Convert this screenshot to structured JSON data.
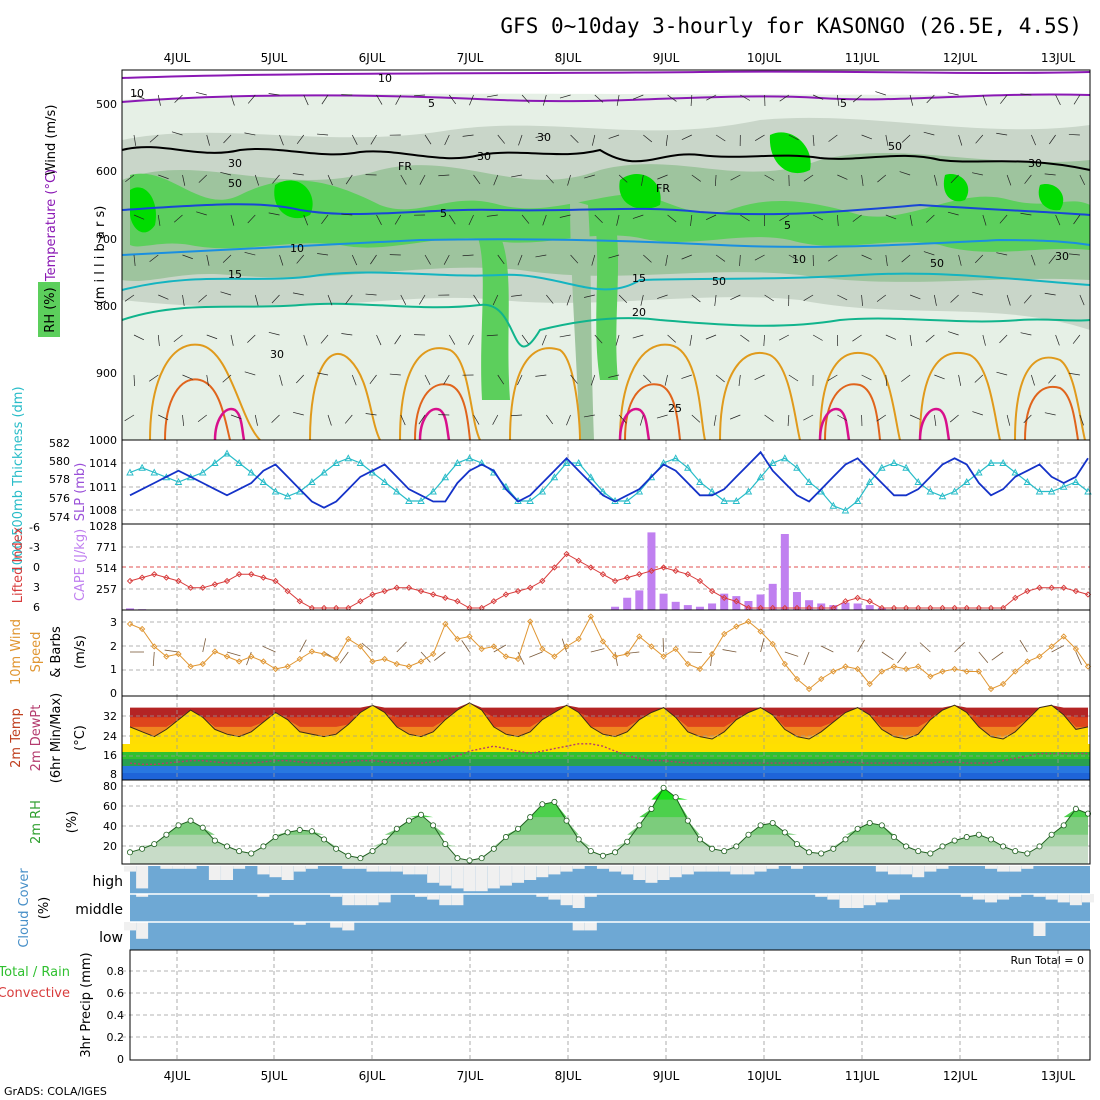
{
  "header": {
    "title": "GFS 0~10day 3-hourly for KASONGO (26.5E, 4.5S)"
  },
  "footer": {
    "credit": "GrADS: COLA/IGES",
    "run_total": "Run Total = 0"
  },
  "date_labels": [
    "4JUL",
    "5JUL",
    "6JUL",
    "7JUL",
    "8JUL",
    "9JUL",
    "10JUL",
    "11JUL",
    "12JUL",
    "13JUL"
  ],
  "colors": {
    "rh_dark": "#00dc00",
    "rh_mid": "#5ccf5c",
    "rh_light": "#9ec49e",
    "rh_pale": "#c9d6c9",
    "rh_faint": "#e6f0e6",
    "temp_5_upper": "#8a18b4",
    "temp_5": "#1846d6",
    "temp_10": "#1a8fe0",
    "temp_15": "#14b4c0",
    "temp_20": "#10b48c",
    "temp_25": "#e09a1c",
    "temp_30": "#e0641c",
    "temp_35": "#d8108c",
    "slp": "#1432c8",
    "thickness": "#28bcc8",
    "lifted_index": "#d83c3c",
    "cape": "#c080f0",
    "wind10m": "#e09632",
    "dewpt": "#b43c6e",
    "rh2m": "#30c030",
    "cloud": "#6ea8d4",
    "cloud_clear": "#f0f0f0"
  },
  "panels": {
    "upper": {
      "ylabel_wind": "Wind (m/s)",
      "ylabel_temp": "Temperature (°C)",
      "ylabel_rh": "RH (%)",
      "ylabel_units": "(m i l l i b a r s)",
      "ticks": [
        "500",
        "600",
        "700",
        "800",
        "900",
        "1000"
      ],
      "contour_labels": [
        "5",
        "5",
        "5",
        "5",
        "10",
        "10",
        "15",
        "15",
        "20",
        "25",
        "FR",
        "FR",
        "10",
        "10",
        "30",
        "30",
        "30",
        "30",
        "50",
        "50",
        "50",
        "50",
        "30",
        "30"
      ]
    },
    "slp": {
      "ylabel_left": "1000-500mb Thickness (dm)",
      "ylabel_right": "SLP (mb)",
      "ticks_left": [
        "582",
        "580",
        "578",
        "576",
        "574"
      ],
      "ticks_right": [
        "1014",
        "1011",
        "1008"
      ]
    },
    "li": {
      "ylabel_left": "Lifted Index",
      "ylabel_right": "CAPE (J/kg)",
      "ticks_left": [
        "-6",
        "-3",
        "0",
        "3",
        "6"
      ],
      "ticks_right": [
        "1028",
        "771",
        "514",
        "257"
      ]
    },
    "wind10": {
      "ylabel_a": "10m Wind",
      "ylabel_b": "Speed",
      "ylabel_c": "& Barbs",
      "ylabel_units": "(m/s)",
      "ticks": [
        "3",
        "2",
        "1",
        "0"
      ]
    },
    "temp2m": {
      "ylabel_a": "2m Temp",
      "ylabel_b": "2m DewPt",
      "ylabel_c": "(6hr Min/Max)",
      "ylabel_units": "(°C)",
      "ticks": [
        "32",
        "24",
        "16",
        "8"
      ]
    },
    "rh2m": {
      "ylabel": "2m RH",
      "ylabel_units": "(%)",
      "ticks": [
        "80",
        "60",
        "40",
        "20"
      ]
    },
    "cloud": {
      "ylabel": "Cloud Cover",
      "ylabel_units": "(%)",
      "layers": [
        "high",
        "middle",
        "low"
      ]
    },
    "precip": {
      "ylabel_a": "Total / Rain",
      "ylabel_b": "Convective",
      "ylabel_c": "3hr Precip (mm)",
      "ticks": [
        "0.8",
        "0.6",
        "0.4",
        "0.2",
        "0"
      ]
    }
  },
  "chart_data": {
    "type": "line",
    "title": "GFS 0~10day 3-hourly for KASONGO (26.5E, 4.5S)",
    "x_start": "3JUL 12Z",
    "x_step_hours": 3,
    "x_count": 80,
    "x_tick_labels": [
      "4JUL",
      "5JUL",
      "6JUL",
      "7JUL",
      "8JUL",
      "9JUL",
      "10JUL",
      "11JUL",
      "12JUL",
      "13JUL"
    ],
    "series": [
      {
        "name": "SLP (mb)",
        "ylim": [
          1005,
          1017
        ],
        "values": [
          1009,
          1010,
          1011,
          1012,
          1013,
          1012,
          1011,
          1010,
          1009,
          1010,
          1011,
          1013,
          1014,
          1012,
          1010,
          1008,
          1007,
          1008,
          1010,
          1012,
          1013,
          1014,
          1012,
          1010,
          1009,
          1008,
          1008,
          1011,
          1013,
          1014,
          1013,
          1010,
          1008,
          1009,
          1011,
          1013,
          1015,
          1013,
          1011,
          1009,
          1008,
          1009,
          1010,
          1012,
          1014,
          1013,
          1011,
          1009,
          1009,
          1010,
          1012,
          1014,
          1016,
          1013,
          1011,
          1009,
          1008,
          1010,
          1012,
          1014,
          1015,
          1013,
          1011,
          1009,
          1009,
          1010,
          1012,
          1014,
          1015,
          1014,
          1011,
          1009,
          1010,
          1012,
          1013,
          1014,
          1012,
          1011,
          1012,
          1015
        ]
      },
      {
        "name": "1000-500mb Thickness (dm)",
        "ylim": [
          574,
          582
        ],
        "values": [
          579,
          579.5,
          579,
          578.5,
          578,
          578.5,
          579,
          580,
          581,
          580,
          579,
          578,
          577,
          576.5,
          577,
          578,
          579,
          580,
          580.5,
          580,
          579,
          578,
          577,
          576,
          576,
          577,
          578.5,
          580,
          580.5,
          580,
          579,
          577.5,
          576,
          576,
          577,
          578.5,
          580,
          580,
          578.5,
          577,
          576,
          576,
          577,
          578.5,
          580,
          580.5,
          579.5,
          578,
          577,
          576,
          576,
          577,
          578.5,
          580,
          580.5,
          579.5,
          578,
          577,
          575.5,
          575,
          576,
          578,
          579.5,
          580,
          579.5,
          578,
          577,
          576.5,
          577,
          578,
          579,
          580,
          580,
          579,
          578,
          577,
          577,
          577.5,
          578,
          577
        ]
      },
      {
        "name": "Lifted Index",
        "ylim": [
          6,
          -6
        ],
        "values": [
          2,
          1.5,
          1,
          1.5,
          2,
          3,
          3,
          2.5,
          2,
          1,
          1,
          1.5,
          2,
          3.5,
          5,
          6,
          6,
          6,
          6,
          5,
          4,
          3.5,
          3,
          3,
          3.5,
          4,
          4.5,
          5,
          6,
          6,
          5,
          4,
          3.5,
          3,
          2,
          0,
          -2,
          -1,
          0,
          1,
          2,
          1.5,
          1,
          0.5,
          0,
          0.5,
          1,
          2,
          3.5,
          4.5,
          5,
          6,
          6,
          6,
          6,
          6,
          6,
          6,
          6,
          5,
          4.5,
          5,
          6,
          6,
          6,
          6,
          6,
          6,
          6,
          6,
          6,
          6,
          6,
          4.5,
          3.5,
          3,
          3,
          3,
          3.5,
          4
        ]
      },
      {
        "name": "CAPE (J/kg)",
        "ylim": [
          0,
          1028
        ],
        "values": [
          20,
          10,
          0,
          0,
          0,
          0,
          0,
          0,
          0,
          0,
          0,
          0,
          0,
          0,
          0,
          0,
          0,
          0,
          0,
          0,
          0,
          0,
          0,
          0,
          0,
          0,
          0,
          0,
          0,
          0,
          0,
          0,
          0,
          0,
          0,
          0,
          0,
          0,
          0,
          0,
          40,
          150,
          240,
          950,
          200,
          100,
          60,
          40,
          80,
          200,
          170,
          110,
          190,
          320,
          930,
          220,
          120,
          80,
          60,
          90,
          80,
          60,
          30,
          0,
          0,
          0,
          0,
          0,
          0,
          0,
          0,
          0,
          0,
          0,
          0,
          0,
          0,
          0,
          0,
          0
        ]
      },
      {
        "name": "10m Wind Speed (m/s)",
        "ylim": [
          0,
          3.2
        ],
        "values": [
          2.8,
          2.6,
          1.9,
          1.5,
          1.6,
          1.1,
          1.2,
          1.7,
          1.5,
          1.3,
          1.5,
          1.3,
          1.0,
          1.1,
          1.4,
          1.7,
          1.6,
          1.4,
          2.2,
          1.9,
          1.3,
          1.4,
          1.2,
          1.1,
          1.3,
          1.6,
          2.8,
          2.2,
          2.3,
          1.8,
          1.9,
          1.5,
          1.4,
          2.9,
          1.8,
          1.5,
          1.9,
          2.2,
          3.1,
          2.1,
          1.5,
          1.6,
          2.3,
          1.9,
          1.5,
          1.8,
          1.2,
          1.0,
          1.6,
          2.4,
          2.7,
          2.9,
          2.5,
          2.0,
          1.2,
          0.6,
          0.2,
          0.6,
          0.9,
          1.1,
          1.0,
          0.4,
          0.9,
          1.1,
          1.0,
          1.1,
          0.7,
          0.9,
          1.0,
          0.9,
          0.9,
          0.2,
          0.4,
          0.9,
          1.3,
          1.5,
          1.9,
          2.3,
          1.8,
          1.1
        ]
      },
      {
        "name": "2m Temp (°C)",
        "ylim": [
          4,
          38
        ],
        "values": [
          26,
          24,
          22,
          25,
          29,
          33,
          30,
          25,
          23,
          22,
          24,
          28,
          32,
          29,
          24,
          23,
          22,
          23,
          27,
          32,
          35,
          32,
          26,
          23,
          22,
          24,
          29,
          33,
          36,
          33,
          26,
          23,
          22,
          24,
          29,
          32,
          35,
          32,
          26,
          23,
          22,
          24,
          29,
          32,
          34,
          30,
          24,
          22,
          21,
          24,
          29,
          32,
          34,
          31,
          25,
          22,
          21,
          24,
          28,
          32,
          34,
          31,
          25,
          22,
          21,
          23,
          29,
          33,
          35,
          32,
          26,
          22,
          21,
          24,
          29,
          34,
          35,
          31,
          25,
          26
        ]
      },
      {
        "name": "2m DewPt (°C)",
        "ylim": [
          4,
          38
        ],
        "values": [
          11,
          10.5,
          10.5,
          11,
          11.5,
          12,
          12,
          11.5,
          11,
          11,
          11,
          11.5,
          12,
          12,
          11.5,
          11,
          11,
          11,
          11.5,
          12,
          12,
          11.5,
          11,
          11,
          11,
          11.5,
          12.5,
          14,
          16,
          17,
          18,
          17,
          16,
          15,
          16,
          17,
          18,
          19,
          19,
          18,
          16,
          14,
          13,
          12,
          12,
          11.5,
          11,
          11,
          11,
          11,
          11,
          11,
          11,
          11,
          11,
          11,
          11,
          11,
          11.5,
          11.5,
          11,
          11,
          11,
          11,
          11,
          11,
          11,
          11.5,
          11.5,
          11,
          11,
          11,
          12,
          13,
          14,
          15,
          15,
          15,
          15,
          15
        ]
      },
      {
        "name": "2m RH (%)",
        "ylim": [
          15,
          85
        ],
        "values": [
          25,
          28,
          32,
          40,
          48,
          52,
          46,
          35,
          30,
          26,
          24,
          30,
          38,
          42,
          44,
          43,
          36,
          28,
          22,
          20,
          26,
          34,
          45,
          52,
          57,
          48,
          32,
          20,
          18,
          20,
          28,
          38,
          45,
          55,
          66,
          68,
          52,
          36,
          26,
          22,
          25,
          34,
          48,
          62,
          80,
          72,
          52,
          36,
          28,
          26,
          30,
          40,
          48,
          50,
          42,
          32,
          25,
          24,
          28,
          36,
          45,
          50,
          48,
          38,
          30,
          26,
          24,
          30,
          35,
          38,
          40,
          36,
          30,
          26,
          24,
          30,
          40,
          48,
          62,
          58
        ]
      },
      {
        "name": "Cloud high (%)",
        "ylim": [
          0,
          100
        ],
        "values": [
          20,
          80,
          0,
          10,
          10,
          10,
          0,
          50,
          50,
          10,
          0,
          30,
          40,
          50,
          20,
          10,
          0,
          0,
          10,
          10,
          20,
          20,
          20,
          30,
          30,
          60,
          70,
          80,
          90,
          90,
          80,
          70,
          60,
          50,
          40,
          30,
          20,
          10,
          0,
          10,
          20,
          30,
          50,
          60,
          50,
          40,
          30,
          20,
          20,
          20,
          30,
          30,
          20,
          10,
          0,
          10,
          0,
          0,
          0,
          0,
          0,
          0,
          20,
          30,
          30,
          40,
          20,
          10,
          0,
          0,
          0,
          10,
          20,
          20,
          10,
          0,
          0,
          0,
          0,
          0
        ]
      },
      {
        "name": "Cloud middle (%)",
        "ylim": [
          0,
          100
        ],
        "values": [
          0,
          10,
          0,
          0,
          0,
          0,
          0,
          0,
          0,
          0,
          0,
          10,
          0,
          0,
          0,
          0,
          0,
          10,
          40,
          40,
          40,
          30,
          0,
          0,
          10,
          20,
          40,
          40,
          0,
          0,
          0,
          0,
          0,
          0,
          10,
          20,
          40,
          50,
          10,
          0,
          0,
          0,
          0,
          0,
          0,
          0,
          0,
          0,
          0,
          0,
          0,
          0,
          0,
          0,
          0,
          0,
          0,
          10,
          20,
          50,
          50,
          40,
          30,
          20,
          0,
          0,
          0,
          0,
          0,
          10,
          20,
          30,
          20,
          10,
          0,
          10,
          20,
          30,
          40,
          30
        ]
      },
      {
        "name": "Cloud low (%)",
        "ylim": [
          0,
          100
        ],
        "values": [
          30,
          60,
          0,
          0,
          0,
          0,
          0,
          0,
          0,
          0,
          0,
          0,
          0,
          0,
          10,
          0,
          0,
          20,
          30,
          0,
          0,
          0,
          0,
          0,
          0,
          0,
          0,
          0,
          0,
          0,
          0,
          0,
          0,
          0,
          0,
          0,
          0,
          30,
          30,
          0,
          0,
          0,
          0,
          0,
          0,
          0,
          0,
          0,
          0,
          0,
          0,
          0,
          0,
          0,
          0,
          0,
          0,
          0,
          0,
          0,
          0,
          0,
          0,
          0,
          0,
          0,
          0,
          0,
          0,
          0,
          0,
          0,
          0,
          0,
          0,
          50,
          0,
          0,
          0,
          0
        ]
      },
      {
        "name": "3hr Precip (mm)",
        "ylim": [
          0,
          1
        ],
        "values": [
          0,
          0,
          0,
          0,
          0,
          0,
          0,
          0,
          0,
          0,
          0,
          0,
          0,
          0,
          0,
          0,
          0,
          0,
          0,
          0,
          0,
          0,
          0,
          0,
          0,
          0,
          0,
          0,
          0,
          0,
          0,
          0,
          0,
          0,
          0,
          0,
          0,
          0,
          0,
          0,
          0,
          0,
          0,
          0,
          0,
          0,
          0,
          0,
          0,
          0,
          0,
          0,
          0,
          0,
          0,
          0,
          0,
          0,
          0,
          0,
          0,
          0,
          0,
          0,
          0,
          0,
          0,
          0,
          0,
          0,
          0,
          0,
          0,
          0,
          0,
          0,
          0,
          0,
          0,
          0
        ]
      }
    ]
  }
}
